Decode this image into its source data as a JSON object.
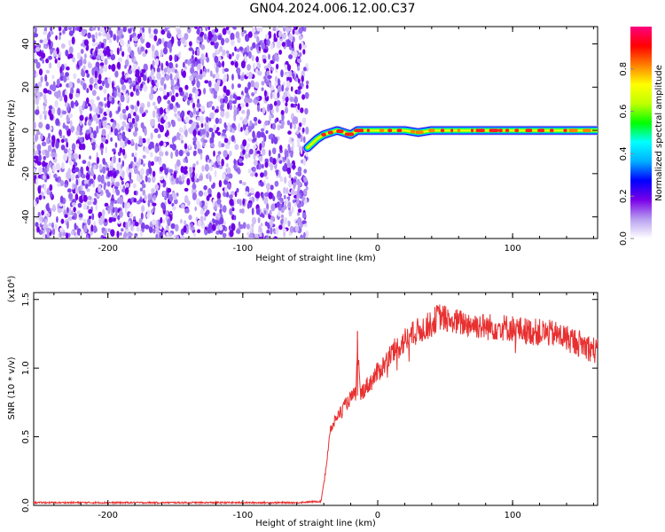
{
  "title": "GN04.2024.006.12.00.C37",
  "chart_data": [
    {
      "type": "heatmap",
      "xlabel": "Height of straight line (km)",
      "ylabel": "Frequency (Hz)",
      "xlim": [
        -255,
        163
      ],
      "ylim": [
        -50,
        48
      ],
      "xticks": [
        -200,
        -100,
        0,
        100
      ],
      "yticks": [
        -40,
        -20,
        0,
        20,
        40
      ],
      "noise_region_x": [
        -255,
        -52
      ],
      "signal_trace": {
        "x": [
          -52,
          -45,
          -40,
          -35,
          -30,
          -25,
          -20,
          -15,
          -10,
          0,
          10,
          20,
          30,
          40,
          60,
          80,
          100,
          120,
          140,
          163
        ],
        "frequency": [
          -8,
          -4,
          -2,
          -1,
          0,
          -1,
          -2,
          0,
          0,
          0,
          0,
          0,
          -1,
          0,
          0,
          0,
          0,
          0,
          0,
          0
        ]
      },
      "colorbar": {
        "label": "Normalized spectral amplitude",
        "range": [
          0,
          1
        ],
        "ticks": [
          "0.0",
          "0.2",
          "0.4",
          "0.6",
          "0.8"
        ],
        "colors": [
          "#ffffff",
          "#b8a0f0",
          "#7a00e8",
          "#0000ff",
          "#00b0ff",
          "#00ffff",
          "#00ff00",
          "#c0ff00",
          "#ffff00",
          "#ff8000",
          "#ff0000",
          "#ff0080"
        ]
      }
    },
    {
      "type": "line",
      "xlabel": "Height of straight line (km)",
      "ylabel": "SNR (10 * v/v)",
      "scale_label": "(x10⁴)",
      "xlim": [
        -255,
        163
      ],
      "ylim": [
        0,
        1.55
      ],
      "xticks": [
        -200,
        -100,
        0,
        100
      ],
      "yticks": [
        "0.0",
        "0.5",
        "1.0",
        "1.5"
      ],
      "color": "#e83030",
      "series": {
        "x": [
          -255,
          -200,
          -150,
          -100,
          -60,
          -42,
          -38,
          -35,
          -30,
          -25,
          -20,
          -16,
          -15,
          -13,
          -10,
          -5,
          0,
          5,
          10,
          20,
          30,
          40,
          45,
          50,
          60,
          70,
          80,
          90,
          100,
          110,
          120,
          130,
          140,
          150,
          163
        ],
        "y": [
          0.02,
          0.02,
          0.02,
          0.02,
          0.02,
          0.03,
          0.3,
          0.55,
          0.65,
          0.72,
          0.78,
          0.82,
          1.22,
          0.8,
          0.85,
          0.9,
          0.97,
          1.03,
          1.1,
          1.2,
          1.27,
          1.32,
          1.38,
          1.36,
          1.33,
          1.32,
          1.3,
          1.3,
          1.29,
          1.27,
          1.26,
          1.25,
          1.22,
          1.18,
          1.12
        ]
      }
    }
  ]
}
